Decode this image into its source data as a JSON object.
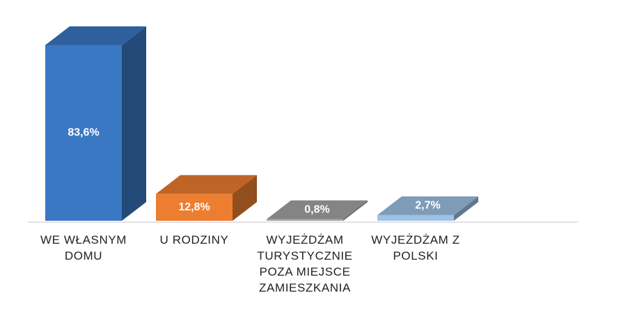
{
  "chart_data": {
    "type": "bar3d",
    "categories": [
      "WE WŁASNYM DOMU",
      "U RODZINY",
      "WYJEŻDŻAM TURYSTYCZNIE POZA MIEJSCE ZAMIESZKANIA",
      "WYJEŻDŻAM Z POLSKI"
    ],
    "values": [
      83.6,
      12.8,
      0.8,
      2.7
    ],
    "value_labels": [
      "83,6%",
      "12,8%",
      "0,8%",
      "2,7%"
    ],
    "colors": [
      "#3a78c4",
      "#ed7d31",
      "#a5a5a5",
      "#9dc3e6"
    ]
  }
}
